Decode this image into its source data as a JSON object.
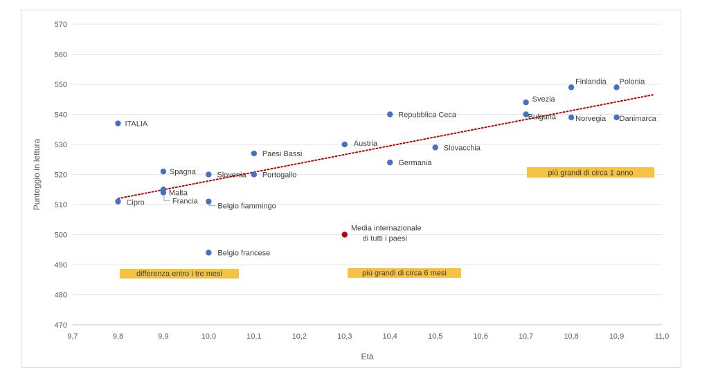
{
  "chart_data": {
    "type": "scatter",
    "title": "",
    "xlabel": "Età",
    "ylabel": "Punteggio in lettura",
    "xlim": [
      9.7,
      11.0
    ],
    "ylim": [
      470,
      570
    ],
    "x_ticks": [
      "9,7",
      "9,8",
      "9,9",
      "10,0",
      "10,1",
      "10,2",
      "10,3",
      "10,4",
      "10,5",
      "10,6",
      "10,7",
      "10,8",
      "10,9",
      "11,0"
    ],
    "y_ticks": [
      "470",
      "480",
      "490",
      "500",
      "510",
      "520",
      "530",
      "540",
      "550",
      "560",
      "570"
    ],
    "grid": "horizontal",
    "series": [
      {
        "color": "#4472c4",
        "points": [
          {
            "label": "ITALIA",
            "x": 9.8,
            "y": 537
          },
          {
            "label": "Cipro",
            "x": 9.8,
            "y": 511
          },
          {
            "label": "Spagna",
            "x": 9.9,
            "y": 521
          },
          {
            "label": "Malta",
            "x": 9.9,
            "y": 515
          },
          {
            "label": "Francia",
            "x": 9.9,
            "y": 514
          },
          {
            "label": "Slovenia",
            "x": 10.0,
            "y": 520
          },
          {
            "label": "Belgio fiammingo",
            "x": 10.0,
            "y": 511
          },
          {
            "label": "Belgio francese",
            "x": 10.0,
            "y": 494
          },
          {
            "label": "Paesi Bassi",
            "x": 10.1,
            "y": 527
          },
          {
            "label": "Portogallo",
            "x": 10.1,
            "y": 520
          },
          {
            "label": "Austria",
            "x": 10.3,
            "y": 530
          },
          {
            "label": "Repubblica Ceca",
            "x": 10.4,
            "y": 540
          },
          {
            "label": "Germania",
            "x": 10.4,
            "y": 524
          },
          {
            "label": "Slovacchia",
            "x": 10.5,
            "y": 529
          },
          {
            "label": "Svezia",
            "x": 10.7,
            "y": 544
          },
          {
            "label": "Bulgaria",
            "x": 10.7,
            "y": 540
          },
          {
            "label": "Finlandia",
            "x": 10.8,
            "y": 549
          },
          {
            "label": "Norvegia",
            "x": 10.8,
            "y": 539
          },
          {
            "label": "Polonia",
            "x": 10.9,
            "y": 549
          },
          {
            "label": "Danimarca",
            "x": 10.9,
            "y": 539
          }
        ]
      },
      {
        "color": "#c00000",
        "points": [
          {
            "label": "Media internazionale di tutti i paesi",
            "label_lines": [
              "Media internazionale",
              "di tutti i paesi"
            ],
            "x": 10.3,
            "y": 500
          }
        ]
      }
    ],
    "trendline": {
      "style": "dotted",
      "color": "#c00000",
      "from": [
        9.8,
        512
      ],
      "to": [
        10.98,
        546.5
      ]
    },
    "annotations": [
      {
        "text": "differenza entro i tre mesi",
        "color": "#f6c243"
      },
      {
        "text": "più grandi di circa 6 mesi",
        "color": "#f6c243"
      },
      {
        "text": "più grandi di circa 1 anno",
        "color": "#f6c243"
      }
    ]
  }
}
